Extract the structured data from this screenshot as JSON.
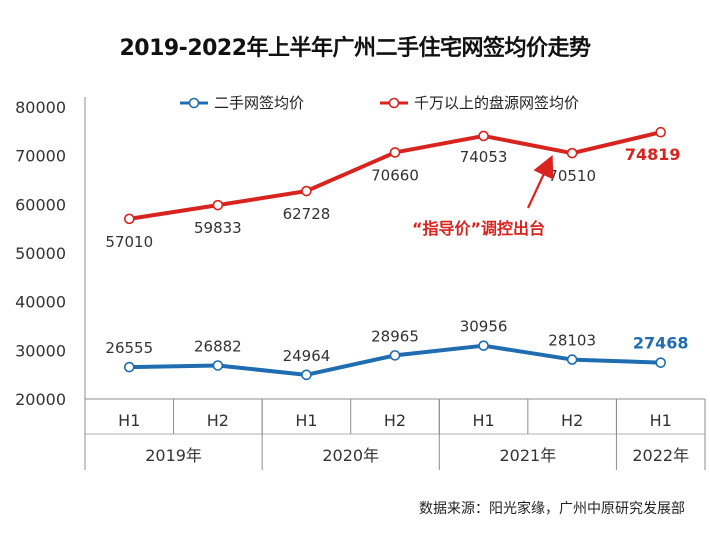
{
  "title": "2019-2022年上半年广州二手住宅网签均价走势",
  "source": "数据来源：阳光家缘，广州中原研究发展部",
  "annotation": "“指导价”调控出台",
  "chart_data": {
    "type": "line",
    "categories": [
      "H1",
      "H2",
      "H1",
      "H2",
      "H1",
      "H2",
      "H1"
    ],
    "groups": [
      {
        "label": "2019年",
        "span": 2
      },
      {
        "label": "2020年",
        "span": 2
      },
      {
        "label": "2021年",
        "span": 2
      },
      {
        "label": "2022年",
        "span": 1
      }
    ],
    "ylim": [
      20000,
      80000
    ],
    "yticks": [
      20000,
      30000,
      40000,
      50000,
      60000,
      70000,
      80000
    ],
    "legend_position": "top",
    "grid": false,
    "series": [
      {
        "name": "二手网签均价",
        "color": "#1f6db0",
        "values": [
          26555,
          26882,
          24964,
          28965,
          30956,
          28103,
          27468
        ],
        "labels": [
          "26555",
          "26882",
          "24964",
          "28965",
          "30956",
          "28103",
          "27468"
        ]
      },
      {
        "name": "千万以上的盘源网签均价",
        "color": "#d9231f",
        "values": [
          57010,
          59833,
          62728,
          70660,
          74053,
          70510,
          74819
        ],
        "labels": [
          "57010",
          "59833",
          "62728",
          "70660",
          "74053",
          "70510",
          "74819"
        ]
      }
    ]
  }
}
